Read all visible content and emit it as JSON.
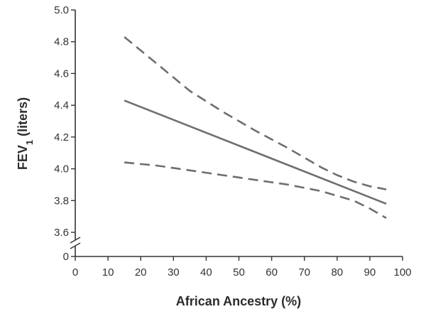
{
  "chart_data": {
    "type": "line",
    "title": "",
    "xlabel": "African Ancestry (%)",
    "ylabel": {
      "main": "FEV",
      "subscript": "1",
      "rest": " (liters)"
    },
    "xlim": [
      0,
      100
    ],
    "ylim": [
      3.6,
      5.0
    ],
    "y_axis_break": true,
    "y_break_value": 0,
    "x_ticks": [
      0,
      10,
      20,
      30,
      40,
      50,
      60,
      70,
      80,
      90,
      100
    ],
    "y_ticks": [
      3.6,
      3.8,
      4.0,
      4.2,
      4.4,
      4.6,
      4.8,
      5.0
    ],
    "y_break_tick": 0,
    "grid": false,
    "series": [
      {
        "style": "solid",
        "x": [
          15,
          95
        ],
        "y": [
          4.43,
          3.78
        ]
      },
      {
        "style": "dashed",
        "x": [
          15,
          25,
          35,
          45,
          55,
          65,
          75,
          80,
          85,
          90,
          95
        ],
        "y": [
          4.83,
          4.66,
          4.49,
          4.36,
          4.24,
          4.13,
          4.01,
          3.96,
          3.92,
          3.89,
          3.87
        ]
      },
      {
        "style": "dashed",
        "x": [
          15,
          25,
          35,
          45,
          55,
          65,
          75,
          80,
          85,
          90,
          95
        ],
        "y": [
          4.04,
          4.02,
          3.99,
          3.96,
          3.93,
          3.9,
          3.86,
          3.83,
          3.8,
          3.75,
          3.69
        ]
      }
    ],
    "colors": {
      "line": "#6e6e6e",
      "axis": "#333333"
    }
  }
}
